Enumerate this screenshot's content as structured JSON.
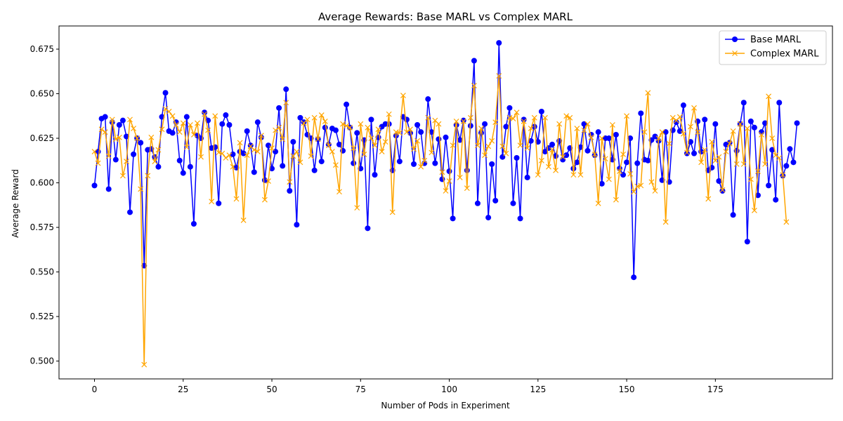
{
  "chart_data": {
    "type": "line",
    "title": "Average Rewards: Base MARL vs Complex MARL",
    "xlabel": "Number of Pods in Experiment",
    "ylabel": "Average Reward",
    "xlim": [
      -10,
      208
    ],
    "ylim": [
      0.49,
      0.688
    ],
    "xticks": [
      0,
      25,
      50,
      75,
      100,
      125,
      150,
      175
    ],
    "yticks": [
      0.5,
      0.525,
      0.55,
      0.575,
      0.6,
      0.625,
      0.65,
      0.675
    ],
    "legend_position": "top-right",
    "grid": false,
    "series": [
      {
        "name": "Base MARL",
        "color": "#0000ff",
        "marker": "circle",
        "values": [
          0.5985,
          0.6175,
          0.636,
          0.637,
          0.5965,
          0.634,
          0.613,
          0.6325,
          0.635,
          0.626,
          0.5835,
          0.616,
          0.625,
          0.6225,
          0.5535,
          0.6185,
          0.619,
          0.6145,
          0.609,
          0.637,
          0.6505,
          0.629,
          0.628,
          0.634,
          0.6125,
          0.6055,
          0.637,
          0.609,
          0.577,
          0.6265,
          0.625,
          0.6395,
          0.635,
          0.6195,
          0.62,
          0.5885,
          0.633,
          0.638,
          0.6325,
          0.616,
          0.6085,
          0.6175,
          0.6165,
          0.629,
          0.621,
          0.606,
          0.634,
          0.6255,
          0.6015,
          0.621,
          0.608,
          0.6175,
          0.642,
          0.6095,
          0.6525,
          0.5955,
          0.623,
          0.5765,
          0.6365,
          0.634,
          0.627,
          0.625,
          0.607,
          0.6245,
          0.612,
          0.631,
          0.6215,
          0.6305,
          0.6295,
          0.6215,
          0.618,
          0.644,
          0.631,
          0.611,
          0.628,
          0.608,
          0.624,
          0.5745,
          0.6355,
          0.6045,
          0.6255,
          0.6315,
          0.633,
          0.633,
          0.607,
          0.6265,
          0.612,
          0.637,
          0.6355,
          0.628,
          0.6105,
          0.6325,
          0.6285,
          0.611,
          0.647,
          0.6285,
          0.611,
          0.6245,
          0.602,
          0.6255,
          0.6065,
          0.58,
          0.6325,
          0.624,
          0.635,
          0.607,
          0.632,
          0.6685,
          0.5885,
          0.628,
          0.633,
          0.5805,
          0.6105,
          0.59,
          0.6785,
          0.6145,
          0.6315,
          0.642,
          0.5885,
          0.614,
          0.58,
          0.6355,
          0.603,
          0.6235,
          0.6315,
          0.623,
          0.64,
          0.6175,
          0.6195,
          0.6215,
          0.615,
          0.6235,
          0.613,
          0.6155,
          0.6195,
          0.608,
          0.6115,
          0.62,
          0.633,
          0.618,
          0.627,
          0.6155,
          0.6285,
          0.5995,
          0.625,
          0.625,
          0.613,
          0.627,
          0.608,
          0.6045,
          0.6115,
          0.625,
          0.547,
          0.611,
          0.639,
          0.613,
          0.6125,
          0.624,
          0.626,
          0.6235,
          0.6015,
          0.6285,
          0.6005,
          0.6295,
          0.634,
          0.629,
          0.6435,
          0.6165,
          0.623,
          0.6165,
          0.6345,
          0.6175,
          0.6355,
          0.607,
          0.6085,
          0.633,
          0.601,
          0.5955,
          0.6215,
          0.6225,
          0.582,
          0.618,
          0.633,
          0.645,
          0.567,
          0.6345,
          0.631,
          0.593,
          0.6285,
          0.6335,
          0.5985,
          0.6185,
          0.5905,
          0.645,
          0.604,
          0.6095,
          0.619,
          0.6115,
          0.6335
        ]
      },
      {
        "name": "Complex MARL",
        "color": "#ffa500",
        "marker": "x",
        "values": [
          0.6175,
          0.611,
          0.63,
          0.6285,
          0.615,
          0.6355,
          0.6245,
          0.6255,
          0.604,
          0.612,
          0.6355,
          0.6305,
          0.625,
          0.5965,
          0.498,
          0.604,
          0.6255,
          0.612,
          0.6185,
          0.63,
          0.6415,
          0.64,
          0.6375,
          0.6325,
          0.6285,
          0.6335,
          0.62,
          0.6325,
          0.627,
          0.6335,
          0.6145,
          0.6385,
          0.6295,
          0.5895,
          0.6375,
          0.617,
          0.6165,
          0.614,
          0.6155,
          0.609,
          0.591,
          0.6225,
          0.579,
          0.6155,
          0.6205,
          0.6185,
          0.6175,
          0.6265,
          0.5905,
          0.601,
          0.6195,
          0.6295,
          0.631,
          0.6245,
          0.645,
          0.6005,
          0.615,
          0.6175,
          0.6115,
          0.6335,
          0.6355,
          0.615,
          0.6365,
          0.6245,
          0.638,
          0.6345,
          0.621,
          0.6175,
          0.61,
          0.595,
          0.633,
          0.632,
          0.631,
          0.6195,
          0.586,
          0.633,
          0.616,
          0.631,
          0.625,
          0.621,
          0.63,
          0.6175,
          0.623,
          0.6385,
          0.5835,
          0.6285,
          0.628,
          0.649,
          0.6285,
          0.63,
          0.619,
          0.6235,
          0.609,
          0.6125,
          0.6365,
          0.617,
          0.635,
          0.633,
          0.606,
          0.5955,
          0.601,
          0.621,
          0.6345,
          0.603,
          0.6345,
          0.597,
          0.6365,
          0.6545,
          0.621,
          0.6305,
          0.6155,
          0.6205,
          0.6235,
          0.634,
          0.66,
          0.6205,
          0.6165,
          0.6365,
          0.636,
          0.6395,
          0.621,
          0.6345,
          0.6195,
          0.6305,
          0.6365,
          0.6045,
          0.6125,
          0.6365,
          0.609,
          0.6185,
          0.607,
          0.633,
          0.6145,
          0.6375,
          0.6365,
          0.6045,
          0.6305,
          0.6045,
          0.6295,
          0.633,
          0.6255,
          0.616,
          0.5885,
          0.625,
          0.6135,
          0.602,
          0.6325,
          0.5905,
          0.6065,
          0.616,
          0.6375,
          0.605,
          0.595,
          0.598,
          0.5985,
          0.6285,
          0.6505,
          0.6005,
          0.5955,
          0.625,
          0.6285,
          0.578,
          0.622,
          0.6365,
          0.635,
          0.637,
          0.6275,
          0.617,
          0.6315,
          0.642,
          0.6285,
          0.6115,
          0.6185,
          0.591,
          0.623,
          0.6125,
          0.6145,
          0.596,
          0.6175,
          0.622,
          0.629,
          0.6105,
          0.633,
          0.6105,
          0.6305,
          0.602,
          0.5845,
          0.6065,
          0.627,
          0.6105,
          0.6485,
          0.625,
          0.6155,
          0.614,
          0.6045,
          0.578
        ]
      }
    ]
  }
}
